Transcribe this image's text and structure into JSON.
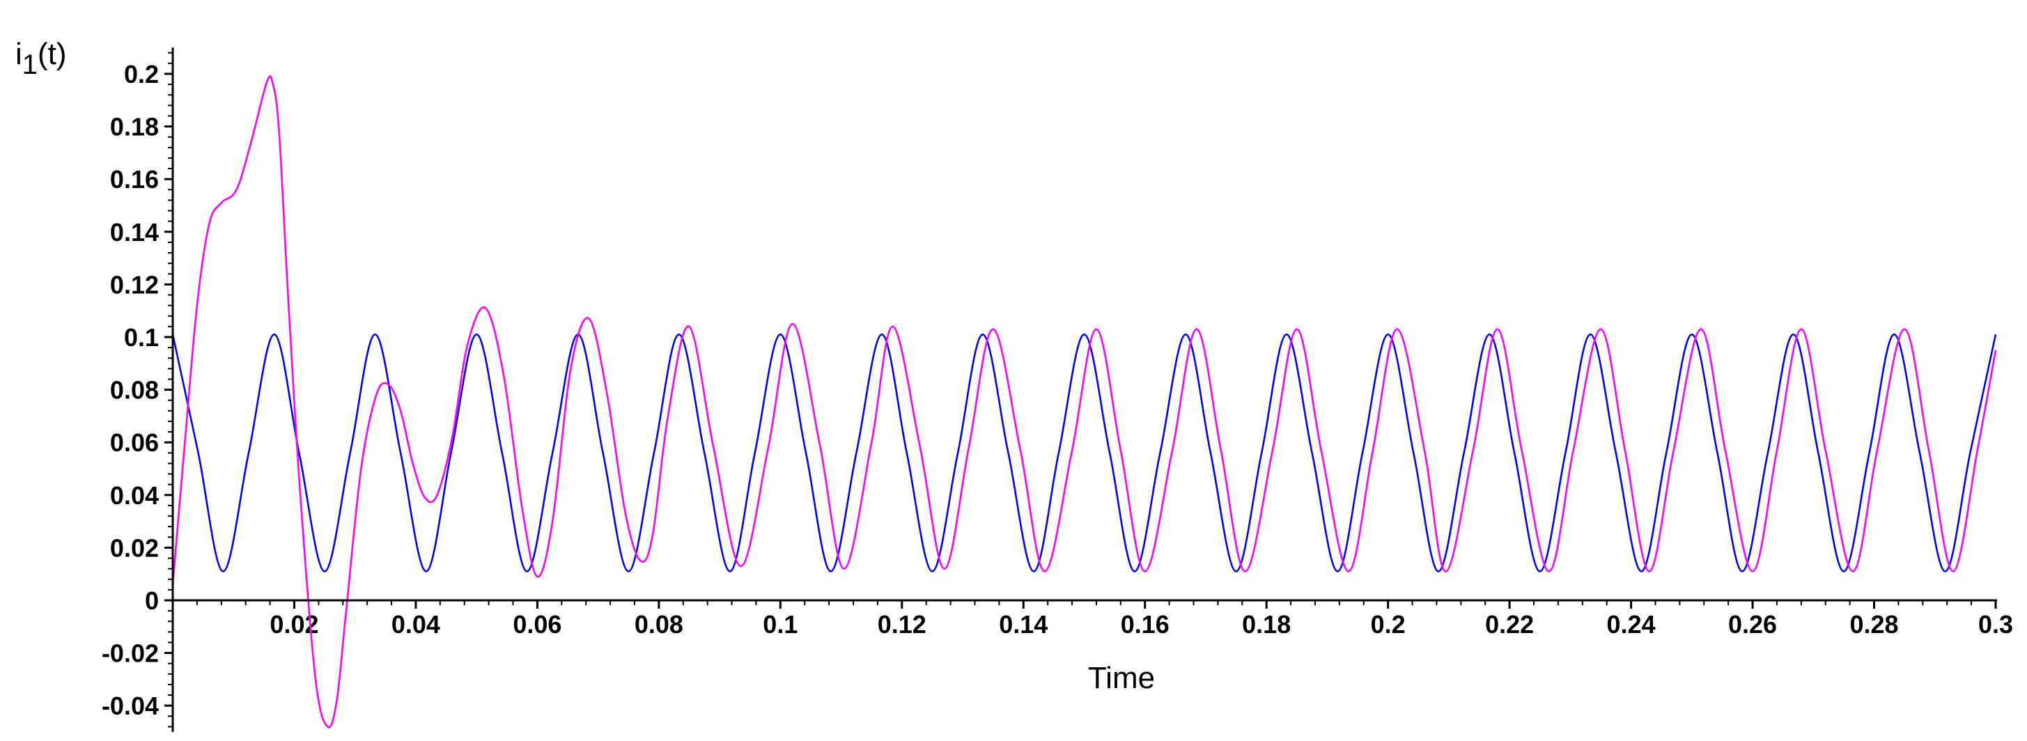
{
  "chart_data": {
    "type": "line",
    "title": "",
    "xlabel": "Time",
    "ylabel": "i",
    "ylabel_sub": "1",
    "ylabel_suffix": "(t)",
    "xlim": [
      0,
      0.3
    ],
    "ylim": [
      -0.05,
      0.21
    ],
    "grid": false,
    "xticks": [
      "0.02",
      "0.04",
      "0.06",
      "0.08",
      "0.1",
      "0.12",
      "0.14",
      "0.16",
      "0.18",
      "0.2",
      "0.22",
      "0.24",
      "0.26",
      "0.28",
      "0.3"
    ],
    "yticks": [
      "-0.04",
      "-0.02",
      "0",
      "0.02",
      "0.04",
      "0.06",
      "0.08",
      "0.1",
      "0.12",
      "0.14",
      "0.16",
      "0.18",
      "0.2"
    ],
    "colors": {
      "blue": "#0000ff",
      "magenta": "#ff00ff"
    },
    "series": [
      {
        "color": "blue",
        "x": [
          0,
          0.0042,
          0.0083,
          0.0125,
          0.0167,
          0.0208,
          0.025,
          0.0292,
          0.0333,
          0.0375,
          0.0417,
          0.0458,
          0.05,
          0.0542,
          0.0583,
          0.0625,
          0.0667,
          0.0708,
          0.075,
          0.0792,
          0.0833,
          0.0875,
          0.0917,
          0.0958,
          0.1,
          0.1042,
          0.1083,
          0.1125,
          0.1167,
          0.1208,
          0.125,
          0.1292,
          0.1333,
          0.1375,
          0.1417,
          0.1458,
          0.15,
          0.1542,
          0.1583,
          0.1625,
          0.1667,
          0.1708,
          0.175,
          0.1792,
          0.1833,
          0.1875,
          0.1917,
          0.1958,
          0.2,
          0.2042,
          0.2083,
          0.2125,
          0.2167,
          0.2208,
          0.225,
          0.2292,
          0.2333,
          0.2375,
          0.2417,
          0.2458,
          0.25,
          0.2542,
          0.2583,
          0.2625,
          0.2667,
          0.2708,
          0.275,
          0.2792,
          0.2833,
          0.2875,
          0.2917,
          0.2958,
          0.3
        ],
        "y": [
          0.101,
          0.056,
          0.011,
          0.056,
          0.101,
          0.056,
          0.011,
          0.056,
          0.101,
          0.056,
          0.011,
          0.056,
          0.101,
          0.056,
          0.011,
          0.056,
          0.101,
          0.056,
          0.011,
          0.056,
          0.101,
          0.056,
          0.011,
          0.056,
          0.101,
          0.056,
          0.011,
          0.056,
          0.101,
          0.056,
          0.011,
          0.056,
          0.101,
          0.056,
          0.011,
          0.056,
          0.101,
          0.056,
          0.011,
          0.056,
          0.101,
          0.056,
          0.011,
          0.056,
          0.101,
          0.056,
          0.011,
          0.056,
          0.101,
          0.056,
          0.011,
          0.056,
          0.101,
          0.056,
          0.011,
          0.056,
          0.101,
          0.056,
          0.011,
          0.056,
          0.101,
          0.056,
          0.011,
          0.056,
          0.101,
          0.056,
          0.011,
          0.056,
          0.101,
          0.056,
          0.011,
          0.056,
          0.101
        ]
      },
      {
        "color": "magenta",
        "x": [
          0,
          0.002,
          0.004,
          0.006,
          0.008,
          0.0105,
          0.013,
          0.0155,
          0.0165,
          0.0175,
          0.019,
          0.021,
          0.0235,
          0.0255,
          0.027,
          0.0285,
          0.031,
          0.0335,
          0.0355,
          0.0375,
          0.0395,
          0.0415,
          0.0435,
          0.046,
          0.0485,
          0.0515,
          0.0545,
          0.0575,
          0.06,
          0.0625,
          0.0655,
          0.0685,
          0.0715,
          0.0745,
          0.077,
          0.079,
          0.0815,
          0.085,
          0.089,
          0.0935,
          0.098,
          0.102,
          0.1065,
          0.1105,
          0.115,
          0.1185,
          0.123,
          0.127,
          0.131,
          0.135,
          0.1395,
          0.1435,
          0.148,
          0.152,
          0.156,
          0.16,
          0.1645,
          0.1685,
          0.1725,
          0.1765,
          0.181,
          0.185,
          0.189,
          0.1935,
          0.1975,
          0.2015,
          0.206,
          0.2095,
          0.214,
          0.218,
          0.222,
          0.2265,
          0.2305,
          0.235,
          0.239,
          0.243,
          0.247,
          0.2515,
          0.2555,
          0.26,
          0.264,
          0.268,
          0.272,
          0.2765,
          0.2805,
          0.285,
          0.289,
          0.293,
          0.297,
          0.3
        ],
        "y": [
          0.006,
          0.06,
          0.112,
          0.143,
          0.151,
          0.156,
          0.175,
          0.197,
          0.196,
          0.178,
          0.115,
          0.04,
          -0.03,
          -0.048,
          -0.038,
          -0.005,
          0.05,
          0.078,
          0.082,
          0.072,
          0.052,
          0.039,
          0.04,
          0.062,
          0.097,
          0.111,
          0.085,
          0.035,
          0.009,
          0.03,
          0.088,
          0.107,
          0.078,
          0.033,
          0.015,
          0.025,
          0.07,
          0.104,
          0.058,
          0.013,
          0.058,
          0.105,
          0.059,
          0.012,
          0.06,
          0.104,
          0.058,
          0.012,
          0.058,
          0.103,
          0.057,
          0.011,
          0.057,
          0.103,
          0.057,
          0.011,
          0.057,
          0.103,
          0.057,
          0.011,
          0.057,
          0.103,
          0.057,
          0.011,
          0.057,
          0.103,
          0.057,
          0.011,
          0.057,
          0.103,
          0.057,
          0.011,
          0.057,
          0.103,
          0.057,
          0.011,
          0.057,
          0.103,
          0.057,
          0.011,
          0.057,
          0.103,
          0.057,
          0.011,
          0.057,
          0.103,
          0.057,
          0.011,
          0.057,
          0.095
        ]
      }
    ]
  }
}
